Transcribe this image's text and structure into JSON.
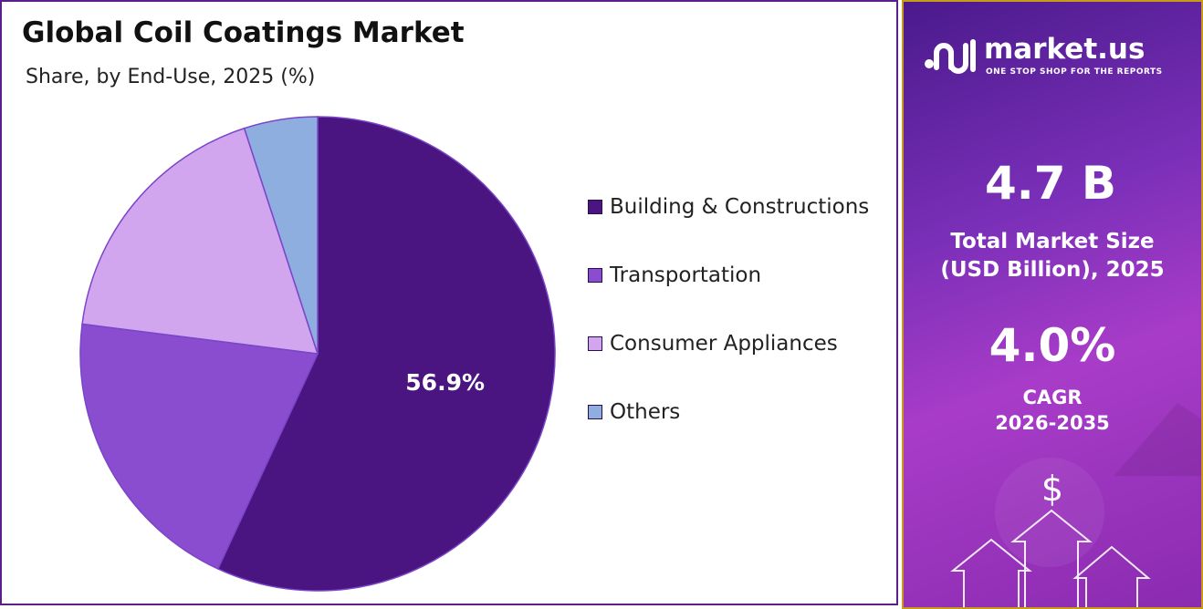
{
  "chart_data": {
    "type": "pie",
    "title": "Global Coil Coatings Market",
    "subtitle": "Share, by End-Use, 2025 (%)",
    "slices": [
      {
        "label": "Building & Constructions",
        "value": 56.9,
        "color": "#4a1580",
        "data_label": "56.9%"
      },
      {
        "label": "Transportation",
        "value": 20.1,
        "color": "#8a4dd0",
        "data_label": ""
      },
      {
        "label": "Consumer Appliances",
        "value": 18.0,
        "color": "#d2a6ee",
        "data_label": ""
      },
      {
        "label": "Others",
        "value": 5.0,
        "color": "#8faee0",
        "data_label": ""
      }
    ],
    "legend_position": "right"
  },
  "side_panel": {
    "brand": "market.us",
    "tagline": "ONE STOP SHOP FOR THE REPORTS",
    "market_size_value": "4.7 B",
    "market_size_label_line1": "Total Market Size",
    "market_size_label_line2": "(USD Billion), 2025",
    "cagr_value": "4.0%",
    "cagr_label_line1": "CAGR",
    "cagr_label_line2": "2026-2035",
    "dollar_symbol": "$",
    "icons": [
      "market-us-logo-icon",
      "dollar-icon",
      "up-arrow-icon"
    ]
  },
  "colors": {
    "panel_border": "#5b1f8a",
    "side_gradient_start": "#4a1a8c",
    "side_gradient_end": "#a83cc8"
  }
}
